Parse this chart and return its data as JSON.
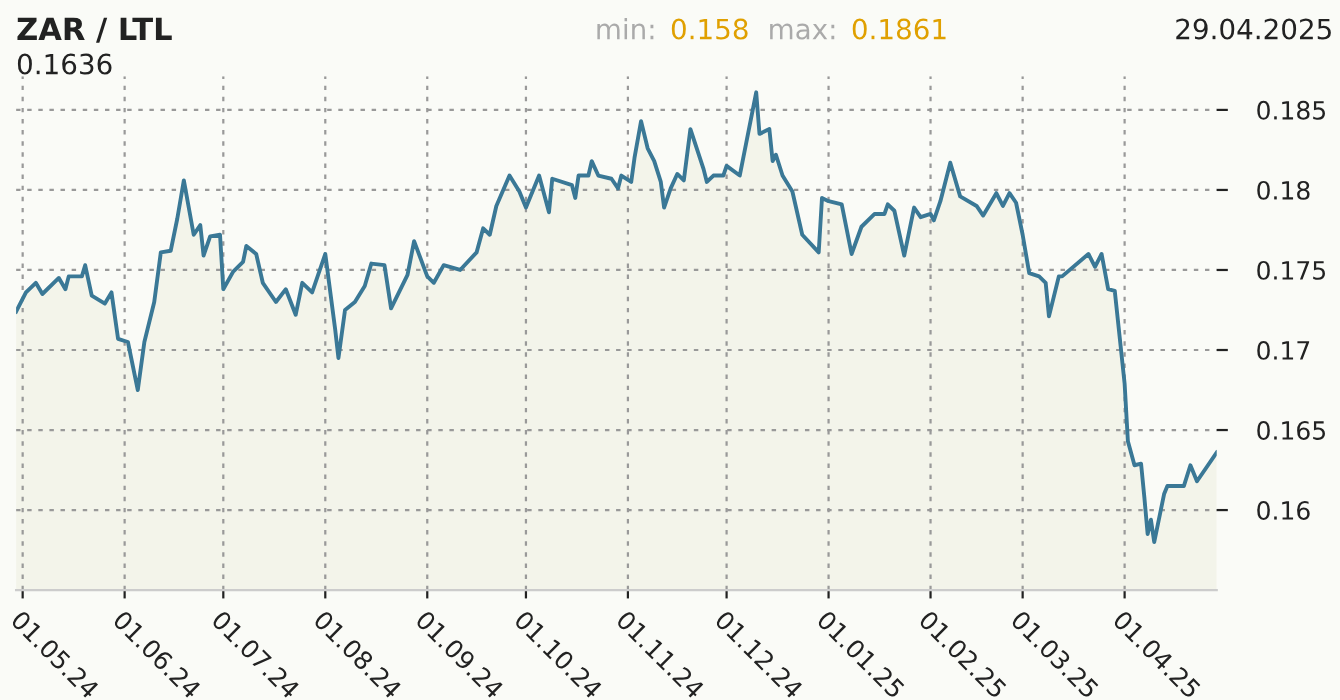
{
  "chart_data": {
    "type": "area",
    "title": "ZAR / LTL",
    "subtitle": "29.04.2025",
    "annotations": [
      "min:",
      "0.158",
      "max:",
      "0.1861",
      "0.1636"
    ],
    "x": [
      "2024-04-29",
      "2024-05-02",
      "2024-05-05",
      "2024-05-07",
      "2024-05-12",
      "2024-05-14",
      "2024-05-15",
      "2024-05-19",
      "2024-05-20",
      "2024-05-22",
      "2024-05-26",
      "2024-05-28",
      "2024-05-30",
      "2024-06-02",
      "2024-06-05",
      "2024-06-07",
      "2024-06-10",
      "2024-06-12",
      "2024-06-15",
      "2024-06-17",
      "2024-06-19",
      "2024-06-22",
      "2024-06-24",
      "2024-06-25",
      "2024-06-27",
      "2024-06-30",
      "2024-07-01",
      "2024-07-04",
      "2024-07-07",
      "2024-07-08",
      "2024-07-11",
      "2024-07-13",
      "2024-07-17",
      "2024-07-20",
      "2024-07-23",
      "2024-07-25",
      "2024-07-28",
      "2024-08-01",
      "2024-08-04",
      "2024-08-05",
      "2024-08-07",
      "2024-08-10",
      "2024-08-13",
      "2024-08-15",
      "2024-08-19",
      "2024-08-21",
      "2024-08-26",
      "2024-08-28",
      "2024-09-01",
      "2024-09-03",
      "2024-09-06",
      "2024-09-11",
      "2024-09-16",
      "2024-09-18",
      "2024-09-20",
      "2024-09-22",
      "2024-09-26",
      "2024-09-29",
      "2024-10-01",
      "2024-10-05",
      "2024-10-08",
      "2024-10-09",
      "2024-10-15",
      "2024-10-16",
      "2024-10-17",
      "2024-10-20",
      "2024-10-21",
      "2024-10-23",
      "2024-10-27",
      "2024-10-29",
      "2024-10-30",
      "2024-11-02",
      "2024-11-03",
      "2024-11-05",
      "2024-11-07",
      "2024-11-09",
      "2024-11-11",
      "2024-11-12",
      "2024-11-14",
      "2024-11-16",
      "2024-11-18",
      "2024-11-20",
      "2024-11-24",
      "2024-11-25",
      "2024-11-27",
      "2024-11-30",
      "2024-12-01",
      "2024-12-05",
      "2024-12-10",
      "2024-12-11",
      "2024-12-14",
      "2024-12-15",
      "2024-12-16",
      "2024-12-18",
      "2024-12-21",
      "2024-12-24",
      "2024-12-29",
      "2024-12-30",
      "2025-01-01",
      "2025-01-05",
      "2025-01-08",
      "2025-01-11",
      "2025-01-15",
      "2025-01-18",
      "2025-01-19",
      "2025-01-21",
      "2025-01-24",
      "2025-01-27",
      "2025-01-29",
      "2025-02-01",
      "2025-02-02",
      "2025-02-04",
      "2025-02-07",
      "2025-02-10",
      "2025-02-15",
      "2025-02-17",
      "2025-02-21",
      "2025-02-23",
      "2025-02-25",
      "2025-02-27",
      "2025-03-01",
      "2025-03-03",
      "2025-03-06",
      "2025-03-08",
      "2025-03-09",
      "2025-03-12",
      "2025-03-13",
      "2025-03-21",
      "2025-03-23",
      "2025-03-25",
      "2025-03-27",
      "2025-03-29",
      "2025-04-01",
      "2025-04-02",
      "2025-04-04",
      "2025-04-06",
      "2025-04-07",
      "2025-04-08",
      "2025-04-09",
      "2025-04-10",
      "2025-04-13",
      "2025-04-14",
      "2025-04-19",
      "2025-04-21",
      "2025-04-23",
      "2025-04-29"
    ],
    "series": [
      {
        "color": "#3a7896",
        "values": [
          0.1724,
          0.1736,
          0.1742,
          0.1735,
          0.1745,
          0.1738,
          0.1746,
          0.1746,
          0.1753,
          0.1734,
          0.1729,
          0.1736,
          0.1707,
          0.1705,
          0.1675,
          0.1705,
          0.173,
          0.1761,
          0.1762,
          0.1782,
          0.1806,
          0.1772,
          0.1778,
          0.1759,
          0.1771,
          0.1772,
          0.1738,
          0.1749,
          0.1755,
          0.1765,
          0.176,
          0.1742,
          0.173,
          0.1738,
          0.1722,
          0.1742,
          0.1736,
          0.176,
          0.1713,
          0.1695,
          0.1725,
          0.173,
          0.174,
          0.1754,
          0.1753,
          0.1726,
          0.1747,
          0.1768,
          0.1746,
          0.1742,
          0.1753,
          0.175,
          0.1761,
          0.1776,
          0.1772,
          0.179,
          0.1809,
          0.1799,
          0.1789,
          0.1809,
          0.1786,
          0.1807,
          0.1803,
          0.1795,
          0.1809,
          0.1809,
          0.1818,
          0.1809,
          0.1807,
          0.1801,
          0.1809,
          0.1805,
          0.182,
          0.1843,
          0.1826,
          0.1818,
          0.1805,
          0.1789,
          0.1801,
          0.181,
          0.1806,
          0.1838,
          0.1813,
          0.1805,
          0.1809,
          0.1809,
          0.1815,
          0.1809,
          0.1861,
          0.1835,
          0.1838,
          0.1818,
          0.1822,
          0.1809,
          0.1799,
          0.1772,
          0.1761,
          0.1795,
          0.1793,
          0.1791,
          0.176,
          0.1777,
          0.1785,
          0.1785,
          0.1791,
          0.1787,
          0.1759,
          0.1789,
          0.1783,
          0.1785,
          0.1781,
          0.1793,
          0.1817,
          0.1796,
          0.179,
          0.1784,
          0.1798,
          0.179,
          0.1798,
          0.1792,
          0.1772,
          0.1748,
          0.1746,
          0.1742,
          0.1721,
          0.1746,
          0.1746,
          0.176,
          0.1752,
          0.176,
          0.1738,
          0.1737,
          0.1679,
          0.1643,
          0.1628,
          0.1629,
          0.1608,
          0.1585,
          0.1594,
          0.158,
          0.161,
          0.1615,
          0.1615,
          0.1628,
          0.1618,
          0.1636
        ]
      }
    ],
    "xlim": [
      "2024-04-29",
      "2025-04-29"
    ],
    "xticks": [
      {
        "value": "2024-05-01",
        "label": "01.05.24"
      },
      {
        "value": "2024-06-01",
        "label": "01.06.24"
      },
      {
        "value": "2024-07-01",
        "label": "01.07.24"
      },
      {
        "value": "2024-08-01",
        "label": "01.08.24"
      },
      {
        "value": "2024-09-01",
        "label": "01.09.24"
      },
      {
        "value": "2024-10-01",
        "label": "01.10.24"
      },
      {
        "value": "2024-11-01",
        "label": "01.11.24"
      },
      {
        "value": "2024-12-01",
        "label": "01.12.24"
      },
      {
        "value": "2025-01-01",
        "label": "01.01.25"
      },
      {
        "value": "2025-02-01",
        "label": "01.02.25"
      },
      {
        "value": "2025-03-01",
        "label": "01.03.25"
      },
      {
        "value": "2025-04-01",
        "label": "01.04.25"
      }
    ],
    "ylim": [
      0.155,
      0.1871
    ],
    "yticks": [
      0.16,
      0.165,
      0.17,
      0.175,
      0.18,
      0.185
    ],
    "grid": true,
    "legend": false,
    "line_style": "solid",
    "marker": "none"
  }
}
